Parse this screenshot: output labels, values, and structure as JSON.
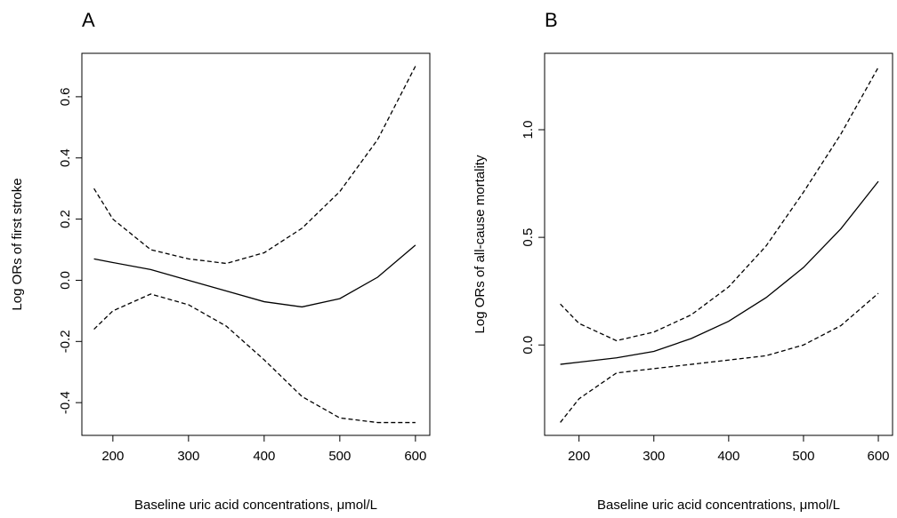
{
  "chart_data": [
    {
      "type": "line",
      "title": "A",
      "xlabel": "Baseline uric acid concentrations, μmol/L",
      "ylabel": "Log ORs of first stroke",
      "x": [
        175,
        200,
        250,
        300,
        350,
        400,
        450,
        500,
        550,
        600
      ],
      "series": [
        {
          "color": "#000000",
          "dash": false,
          "values": [
            0.07,
            0.058,
            0.035,
            0.0,
            -0.035,
            -0.07,
            -0.087,
            -0.06,
            0.01,
            0.115
          ]
        },
        {
          "color": "#000000",
          "dash": true,
          "values": [
            0.3,
            0.2,
            0.1,
            0.07,
            0.055,
            0.09,
            0.17,
            0.29,
            0.46,
            0.7
          ]
        },
        {
          "color": "#000000",
          "dash": true,
          "values": [
            -0.16,
            -0.1,
            -0.045,
            -0.08,
            -0.15,
            -0.26,
            -0.38,
            -0.45,
            -0.465,
            -0.465
          ]
        }
      ],
      "xlim": [
        159,
        619
      ],
      "xticks": [
        200,
        300,
        400,
        500,
        600
      ],
      "ylim": [
        -0.507,
        0.742
      ],
      "yticks": [
        -0.4,
        -0.2,
        {
          "value": 0,
          "label": "0.0"
        },
        0.2,
        0.4,
        0.6
      ]
    },
    {
      "type": "line",
      "title": "B",
      "xlabel": "Baseline uric acid concentrations, μmol/L",
      "ylabel": "Log ORs of all-cause mortality",
      "x": [
        175,
        200,
        250,
        300,
        350,
        400,
        450,
        500,
        550,
        600
      ],
      "series": [
        {
          "color": "#000000",
          "dash": false,
          "values": [
            -0.09,
            -0.08,
            -0.06,
            -0.03,
            0.03,
            0.11,
            0.22,
            0.36,
            0.54,
            0.76
          ]
        },
        {
          "color": "#000000",
          "dash": true,
          "values": [
            0.19,
            0.1,
            0.02,
            0.06,
            0.14,
            0.27,
            0.46,
            0.71,
            0.98,
            1.29
          ]
        },
        {
          "color": "#000000",
          "dash": true,
          "values": [
            -0.36,
            -0.25,
            -0.13,
            -0.11,
            -0.09,
            -0.07,
            -0.05,
            0.0,
            0.09,
            0.24
          ]
        }
      ],
      "xlim": [
        154,
        619
      ],
      "xticks": [
        200,
        300,
        400,
        500,
        600
      ],
      "ylim": [
        -0.42,
        1.355
      ],
      "yticks": [
        {
          "value": 0,
          "label": "0.0"
        },
        0.5,
        {
          "value": 1,
          "label": "1.0"
        }
      ]
    }
  ]
}
